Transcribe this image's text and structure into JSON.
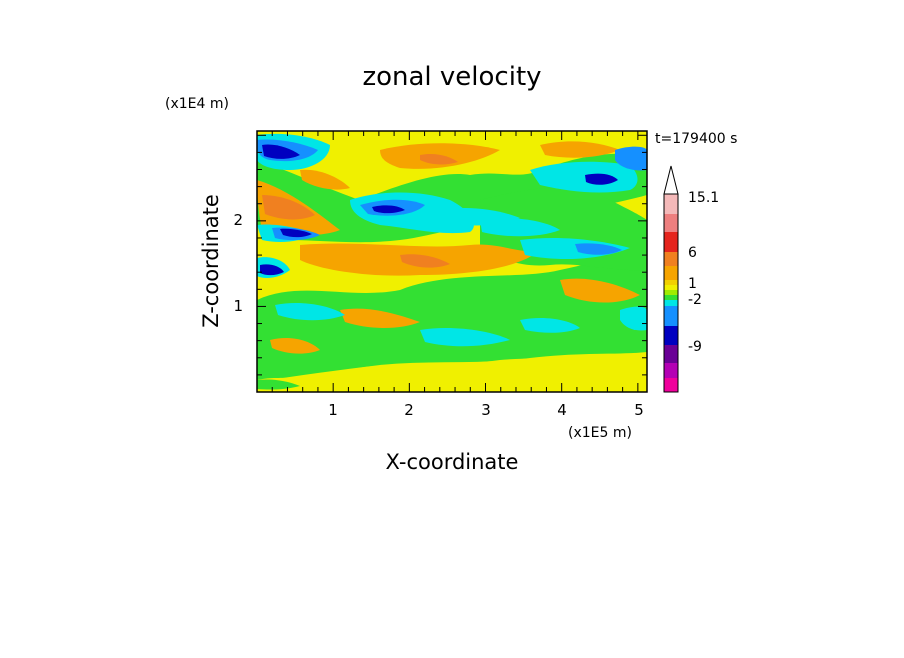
{
  "chart_data": {
    "type": "heatmap",
    "title": "zonal velocity",
    "xlabel": "X-coordinate",
    "ylabel": "Z-coordinate",
    "x_scale_note": "(x1E5 m)",
    "y_scale_note": "(x1E4 m)",
    "time_label": "t=179400 s",
    "xlim": [
      0,
      5.12
    ],
    "ylim": [
      0,
      3.05
    ],
    "x_ticks": [
      "1",
      "2",
      "3",
      "4",
      "5"
    ],
    "y_ticks": [
      "1",
      "2"
    ],
    "colorbar": {
      "labels": [
        "15.1",
        "6",
        "1",
        "-2",
        "-9"
      ],
      "colors": [
        "#ffffff",
        "#f4b9b9",
        "#ee7f7f",
        "#e5241d",
        "#f08020",
        "#f6a400",
        "#f2d000",
        "#f0f000",
        "#a0ec00",
        "#33e033",
        "#00e6e6",
        "#1590ff",
        "#0000c0",
        "#6a0096",
        "#b400b4",
        "#f0009c"
      ]
    },
    "features": [
      {
        "region": "upper band, z≈2.6-3.0",
        "value_sign": "negative",
        "color": "#0000c0"
      },
      {
        "region": "mid band, z≈1.4-2.2",
        "value_sign": "mixed",
        "color": "#f08020"
      },
      {
        "region": "lower region, z<1",
        "value_sign": "weak positive",
        "color": "#f0f000"
      }
    ]
  }
}
